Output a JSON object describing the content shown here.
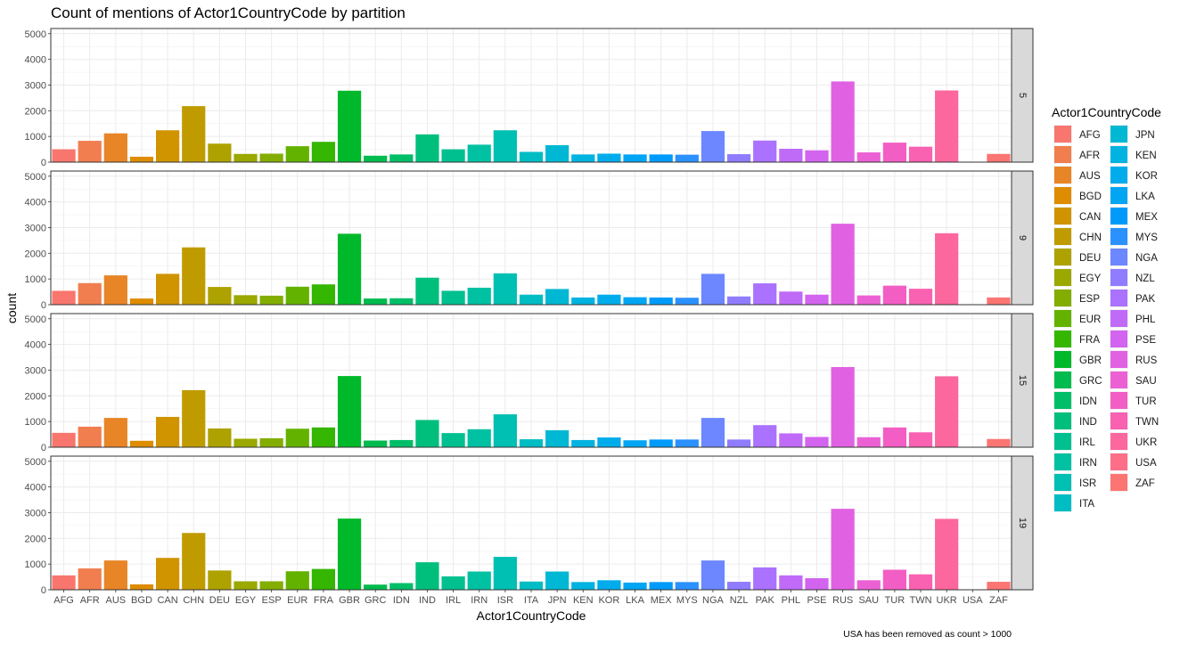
{
  "chart_data": {
    "type": "bar",
    "title": "Count of mentions of Actor1CountryCode by partition",
    "xlabel": "Actor1CountryCode",
    "ylabel": "count",
    "caption": "USA has been removed as count > 1000",
    "ylim": [
      0,
      5200
    ],
    "yticks": [
      0,
      1000,
      2000,
      3000,
      4000,
      5000
    ],
    "grid": true,
    "legend": {
      "title": "Actor1CountryCode",
      "position": "right",
      "columns": 2
    },
    "categories": [
      "AFG",
      "AFR",
      "AUS",
      "BGD",
      "CAN",
      "CHN",
      "DEU",
      "EGY",
      "ESP",
      "EUR",
      "FRA",
      "GBR",
      "GRC",
      "IDN",
      "IND",
      "IRL",
      "IRN",
      "ISR",
      "ITA",
      "JPN",
      "KEN",
      "KOR",
      "LKA",
      "MEX",
      "MYS",
      "NGA",
      "NZL",
      "PAK",
      "PHL",
      "PSE",
      "RUS",
      "SAU",
      "TUR",
      "TWN",
      "UKR",
      "USA",
      "ZAF"
    ],
    "colors": [
      "#F8766D",
      "#F17E4F",
      "#E88526",
      "#DE8C00",
      "#D09400",
      "#C09B00",
      "#AEA200",
      "#9AA800",
      "#83AD00",
      "#64B200",
      "#35B600",
      "#00B92A",
      "#00BB4E",
      "#00BE67",
      "#00BF7D",
      "#00C090",
      "#00C1A2",
      "#00BFB3",
      "#00BDC4",
      "#00B8D3",
      "#00B3E0",
      "#00ACEB",
      "#00A5F4",
      "#009BFA",
      "#2A91FF",
      "#6C87FF",
      "#8F7CFF",
      "#AA72FF",
      "#C06AF8",
      "#D264EF",
      "#E062E3",
      "#EB61D4",
      "#F35EC4",
      "#F961B1",
      "#FC679D",
      "#FD6E88",
      "#FB7573"
    ],
    "partitions": [
      {
        "label": "5",
        "values": [
          500,
          830,
          1120,
          210,
          1240,
          2180,
          720,
          320,
          330,
          620,
          790,
          2780,
          250,
          300,
          1080,
          500,
          680,
          1240,
          400,
          660,
          300,
          330,
          300,
          300,
          290,
          1210,
          310,
          840,
          520,
          460,
          3140,
          380,
          760,
          600,
          2790,
          0,
          320
        ]
      },
      {
        "label": "9",
        "values": [
          540,
          840,
          1140,
          240,
          1200,
          2230,
          690,
          370,
          350,
          700,
          790,
          2760,
          240,
          250,
          1050,
          540,
          660,
          1220,
          390,
          610,
          280,
          390,
          290,
          280,
          270,
          1200,
          320,
          830,
          510,
          390,
          3150,
          360,
          740,
          620,
          2780,
          0,
          280
        ]
      },
      {
        "label": "15",
        "values": [
          560,
          800,
          1140,
          250,
          1180,
          2220,
          730,
          330,
          350,
          720,
          770,
          2770,
          260,
          280,
          1060,
          550,
          700,
          1280,
          310,
          660,
          280,
          380,
          270,
          300,
          300,
          1140,
          300,
          860,
          540,
          400,
          3120,
          390,
          770,
          580,
          2760,
          0,
          320
        ]
      },
      {
        "label": "19",
        "values": [
          560,
          830,
          1140,
          210,
          1240,
          2210,
          750,
          330,
          330,
          720,
          810,
          2770,
          200,
          260,
          1070,
          520,
          710,
          1280,
          320,
          710,
          300,
          370,
          280,
          300,
          300,
          1140,
          310,
          870,
          560,
          450,
          3150,
          370,
          780,
          600,
          2760,
          0,
          310
        ]
      }
    ]
  }
}
